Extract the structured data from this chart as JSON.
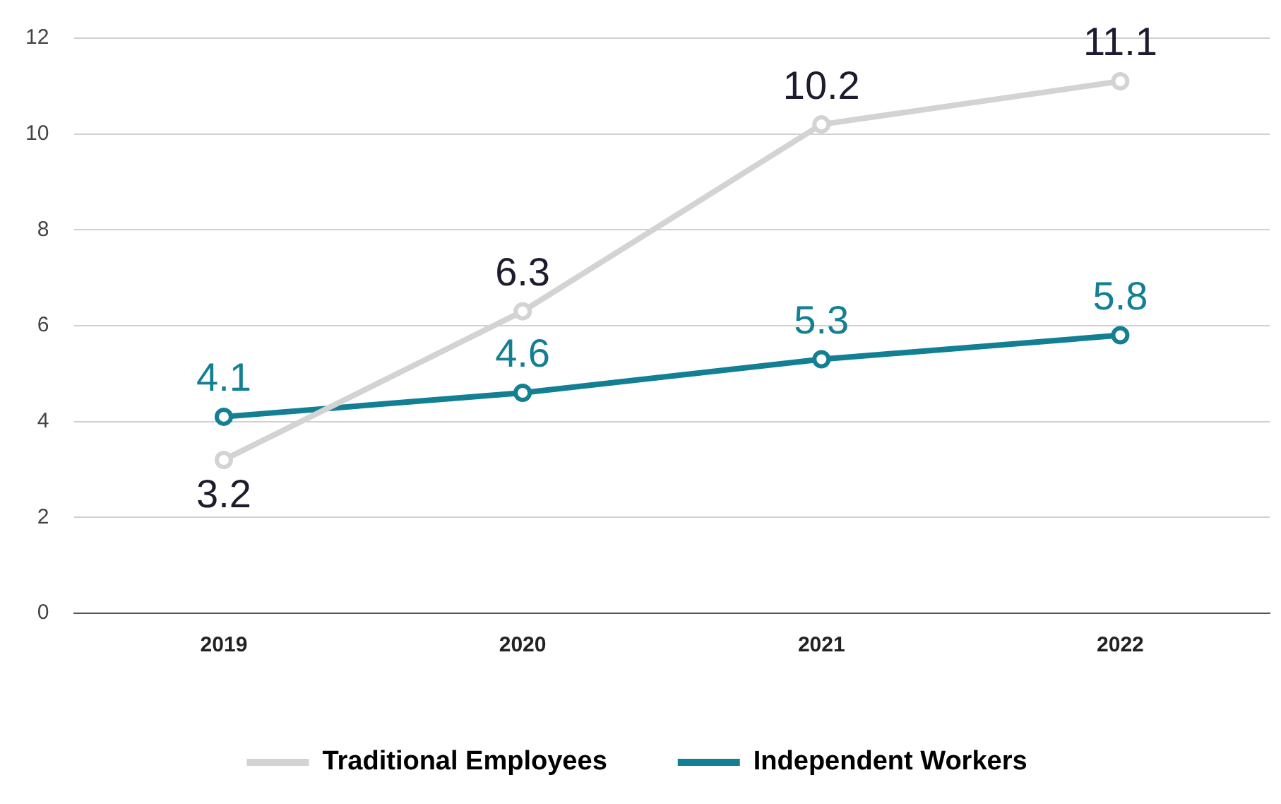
{
  "chart_data": {
    "type": "line",
    "categories": [
      "2019",
      "2020",
      "2021",
      "2022"
    ],
    "series": [
      {
        "name": "Traditional Employees",
        "color": "#d3d3d3",
        "values": [
          3.2,
          6.3,
          10.2,
          11.1
        ]
      },
      {
        "name": "Independent Workers",
        "color": "#137f93",
        "values": [
          4.1,
          4.6,
          5.3,
          5.8
        ]
      }
    ],
    "ylim": [
      0,
      12
    ],
    "yticks": [
      0,
      2,
      4,
      6,
      8,
      10,
      12
    ],
    "grid": "y",
    "legend": "bottom",
    "marker": "circle",
    "line_style": "solid",
    "data_labels": true
  }
}
